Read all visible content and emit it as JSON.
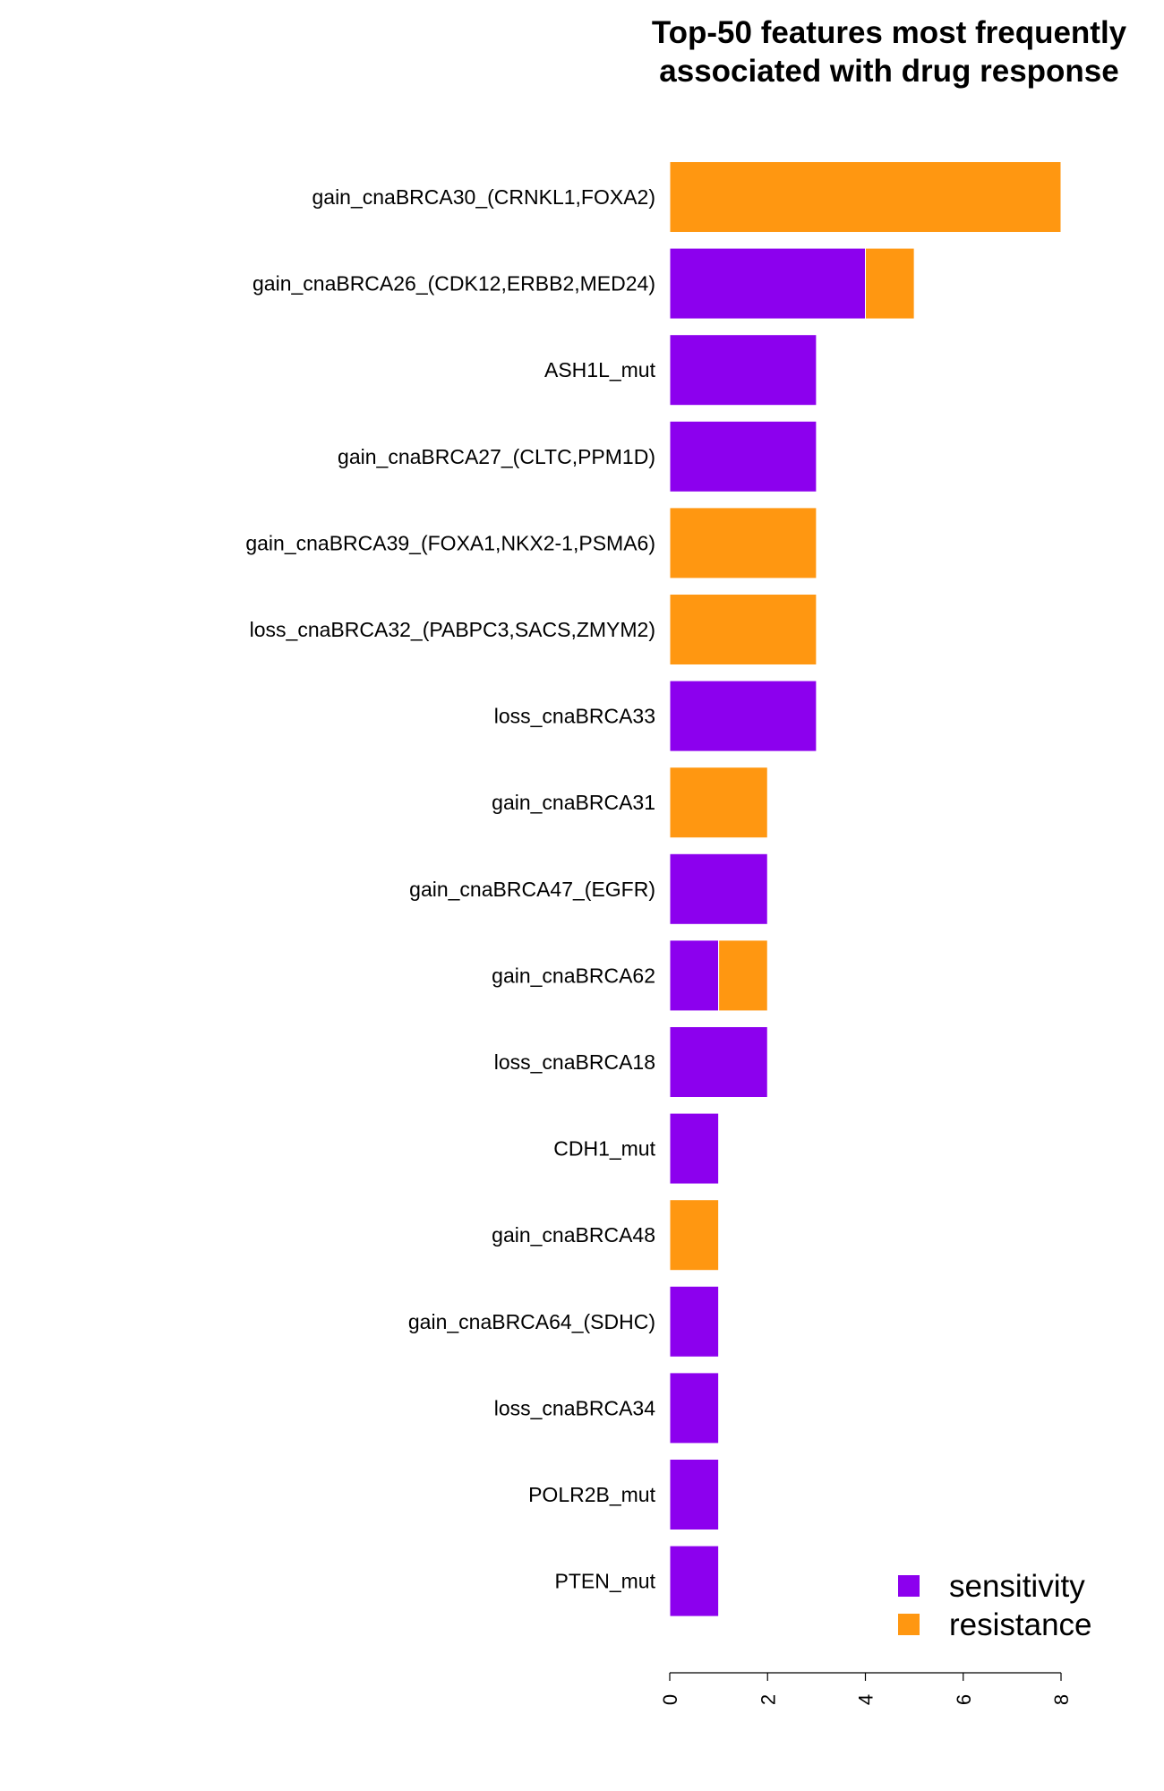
{
  "chart_data": {
    "type": "bar",
    "orientation": "horizontal",
    "stacked": true,
    "title_lines": [
      "Top-50 features most frequently",
      "associated with drug response"
    ],
    "xlabel": "",
    "ylabel": "",
    "xlim": [
      0,
      8
    ],
    "x_ticks": [
      "0",
      "2",
      "4",
      "6",
      "8"
    ],
    "grid": false,
    "legend_position": "bottom-right",
    "categories": [
      "gain_cnaBRCA30_(CRNKL1,FOXA2)",
      "gain_cnaBRCA26_(CDK12,ERBB2,MED24)",
      "ASH1L_mut",
      "gain_cnaBRCA27_(CLTC,PPM1D)",
      "gain_cnaBRCA39_(FOXA1,NKX2-1,PSMA6)",
      "loss_cnaBRCA32_(PABPC3,SACS,ZMYM2)",
      "loss_cnaBRCA33",
      "gain_cnaBRCA31",
      "gain_cnaBRCA47_(EGFR)",
      "gain_cnaBRCA62",
      "loss_cnaBRCA18",
      "CDH1_mut",
      "gain_cnaBRCA48",
      "gain_cnaBRCA64_(SDHC)",
      "loss_cnaBRCA34",
      "POLR2B_mut",
      "PTEN_mut"
    ],
    "series": [
      {
        "name": "sensitivity",
        "color": "#8C00EE",
        "values": [
          0,
          4,
          3,
          3,
          0,
          0,
          3,
          0,
          2,
          1,
          2,
          1,
          0,
          1,
          1,
          1,
          1
        ]
      },
      {
        "name": "resistance",
        "color": "#FF9711",
        "values": [
          8,
          1,
          0,
          0,
          3,
          3,
          0,
          2,
          0,
          1,
          0,
          0,
          1,
          0,
          0,
          0,
          0
        ]
      }
    ]
  }
}
